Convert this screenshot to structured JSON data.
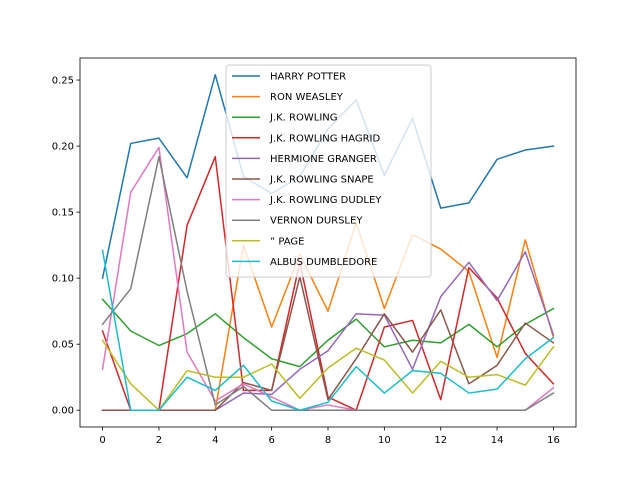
{
  "chart_data": {
    "type": "line",
    "title": "",
    "xlabel": "",
    "ylabel": "",
    "xlim": [
      -0.8,
      16.8
    ],
    "ylim": [
      -0.0127,
      0.2667
    ],
    "x": [
      0,
      1,
      2,
      3,
      4,
      5,
      6,
      7,
      8,
      9,
      10,
      11,
      12,
      13,
      14,
      15,
      16
    ],
    "xticks": [
      0,
      2,
      4,
      6,
      8,
      10,
      12,
      14,
      16
    ],
    "xtick_labels": [
      "0",
      "2",
      "4",
      "6",
      "8",
      "10",
      "12",
      "14",
      "16"
    ],
    "yticks": [
      0.0,
      0.05,
      0.1,
      0.15,
      0.2,
      0.25
    ],
    "ytick_labels": [
      "0.00",
      "0.05",
      "0.10",
      "0.15",
      "0.20",
      "0.25"
    ],
    "grid": false,
    "legend_position": "upper-center",
    "series": [
      {
        "name": "HARRY POTTER",
        "color": "#1f77b4",
        "values": [
          0.1,
          0.202,
          0.206,
          0.176,
          0.254,
          0.177,
          0.164,
          0.177,
          0.213,
          0.235,
          0.178,
          0.221,
          0.153,
          0.157,
          0.19,
          0.197,
          0.2
        ]
      },
      {
        "name": "RON WEASLEY",
        "color": "#ff7f0e",
        "values": [
          0.0,
          0.0,
          0.0,
          0.0,
          0.0,
          0.125,
          0.063,
          0.118,
          0.075,
          0.142,
          0.077,
          0.133,
          0.122,
          0.105,
          0.04,
          0.129,
          0.055
        ]
      },
      {
        "name": "J.K. ROWLING",
        "color": "#2ca02c",
        "values": [
          0.084,
          0.06,
          0.049,
          0.058,
          0.073,
          0.055,
          0.039,
          0.033,
          0.053,
          0.069,
          0.048,
          0.053,
          0.051,
          0.065,
          0.048,
          0.065,
          0.077
        ]
      },
      {
        "name": "J.K. ROWLING HAGRID",
        "color": "#d62728",
        "values": [
          0.06,
          0.0,
          0.0,
          0.14,
          0.192,
          0.015,
          0.015,
          0.112,
          0.01,
          0.0,
          0.063,
          0.068,
          0.008,
          0.108,
          0.085,
          0.043,
          0.02
        ]
      },
      {
        "name": "HERMIONE GRANGER",
        "color": "#9467bd",
        "values": [
          0.0,
          0.0,
          0.0,
          0.0,
          0.0,
          0.013,
          0.012,
          0.031,
          0.045,
          0.073,
          0.072,
          0.031,
          0.086,
          0.112,
          0.083,
          0.12,
          0.057
        ]
      },
      {
        "name": "J.K. ROWLING SNAPE",
        "color": "#8c564b",
        "values": [
          0.0,
          0.0,
          0.0,
          0.0,
          0.0,
          0.021,
          0.015,
          0.101,
          0.008,
          0.039,
          0.073,
          0.044,
          0.076,
          0.02,
          0.034,
          0.066,
          0.051
        ]
      },
      {
        "name": "J.K. ROWLING DUDLEY",
        "color": "#e377c2",
        "values": [
          0.031,
          0.165,
          0.199,
          0.044,
          0.007,
          0.02,
          0.01,
          0.0,
          0.004,
          0.0,
          0.0,
          0.0,
          0.0,
          0.0,
          0.0,
          0.0,
          0.017
        ]
      },
      {
        "name": "VERNON DURSLEY",
        "color": "#7f7f7f",
        "values": [
          0.065,
          0.092,
          0.192,
          0.09,
          0.004,
          0.018,
          0.0,
          0.0,
          0.0,
          0.0,
          0.0,
          0.0,
          0.0,
          0.0,
          0.0,
          0.0,
          0.013
        ]
      },
      {
        "name": "” PAGE",
        "color": "#bcbd22",
        "values": [
          0.053,
          0.02,
          0.0,
          0.03,
          0.025,
          0.025,
          0.035,
          0.009,
          0.032,
          0.047,
          0.038,
          0.013,
          0.037,
          0.025,
          0.027,
          0.019,
          0.048
        ]
      },
      {
        "name": "ALBUS DUMBLEDORE",
        "color": "#17becf",
        "values": [
          0.121,
          0.0,
          0.0,
          0.025,
          0.015,
          0.034,
          0.007,
          0.0,
          0.006,
          0.033,
          0.013,
          0.03,
          0.028,
          0.013,
          0.016,
          0.039,
          0.055
        ]
      }
    ]
  }
}
